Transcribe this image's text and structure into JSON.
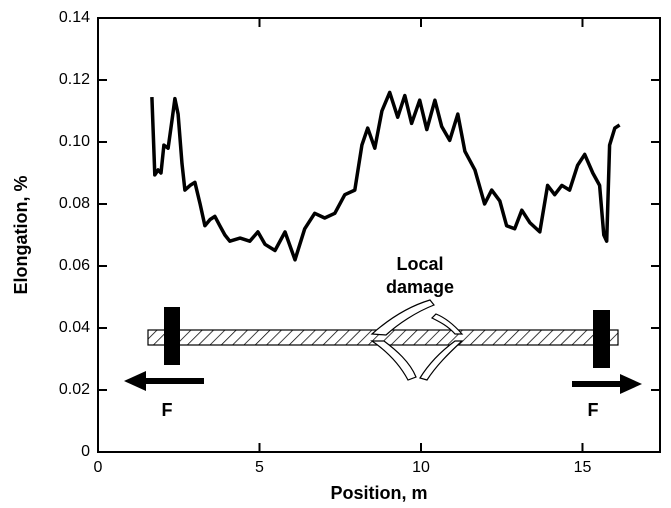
{
  "chart_data": {
    "type": "line",
    "x_label": "Position, m",
    "y_label": "Elongation, %",
    "x": [
      1.67,
      1.76,
      1.86,
      1.95,
      2.04,
      2.17,
      2.29,
      2.38,
      2.48,
      2.6,
      2.69,
      2.85,
      3.0,
      3.16,
      3.31,
      3.47,
      3.62,
      3.77,
      3.93,
      4.08,
      4.4,
      4.7,
      4.95,
      5.17,
      5.48,
      5.79,
      6.1,
      6.4,
      6.71,
      7.02,
      7.33,
      7.64,
      7.95,
      8.17,
      8.35,
      8.57,
      8.79,
      9.03,
      9.28,
      9.5,
      9.71,
      9.96,
      10.18,
      10.43,
      10.64,
      10.89,
      11.14,
      11.36,
      11.67,
      11.97,
      12.19,
      12.44,
      12.65,
      12.9,
      13.12,
      13.37,
      13.68,
      13.92,
      14.14,
      14.36,
      14.6,
      14.85,
      15.07,
      15.32,
      15.53,
      15.66,
      15.75,
      15.84,
      16.0,
      16.15
    ],
    "values": [
      0.1145,
      0.0894,
      0.091,
      0.09,
      0.099,
      0.098,
      0.107,
      0.114,
      0.109,
      0.093,
      0.0845,
      0.086,
      0.087,
      0.08,
      0.073,
      0.075,
      0.076,
      0.073,
      0.07,
      0.068,
      0.069,
      0.068,
      0.071,
      0.067,
      0.065,
      0.071,
      0.062,
      0.072,
      0.077,
      0.0755,
      0.077,
      0.083,
      0.0845,
      0.099,
      0.1045,
      0.098,
      0.11,
      0.116,
      0.108,
      0.115,
      0.106,
      0.1135,
      0.104,
      0.1135,
      0.105,
      0.1005,
      0.109,
      0.097,
      0.091,
      0.08,
      0.0845,
      0.081,
      0.073,
      0.072,
      0.078,
      0.074,
      0.071,
      0.086,
      0.083,
      0.086,
      0.0845,
      0.0925,
      0.096,
      0.09,
      0.086,
      0.07,
      0.068,
      0.099,
      0.1045,
      0.1055
    ],
    "color": "#000000",
    "xlim": [
      0,
      17.4
    ],
    "xticks": [
      0,
      5,
      10,
      15
    ],
    "ylim": [
      0,
      0.14
    ],
    "yticks": [
      0,
      0.02,
      0.04,
      0.06,
      0.08,
      {
        "value": 0.1,
        "label": "0.10"
      },
      0.12,
      0.14
    ],
    "annotations": [
      "Local",
      "damage",
      "F",
      "F"
    ]
  }
}
